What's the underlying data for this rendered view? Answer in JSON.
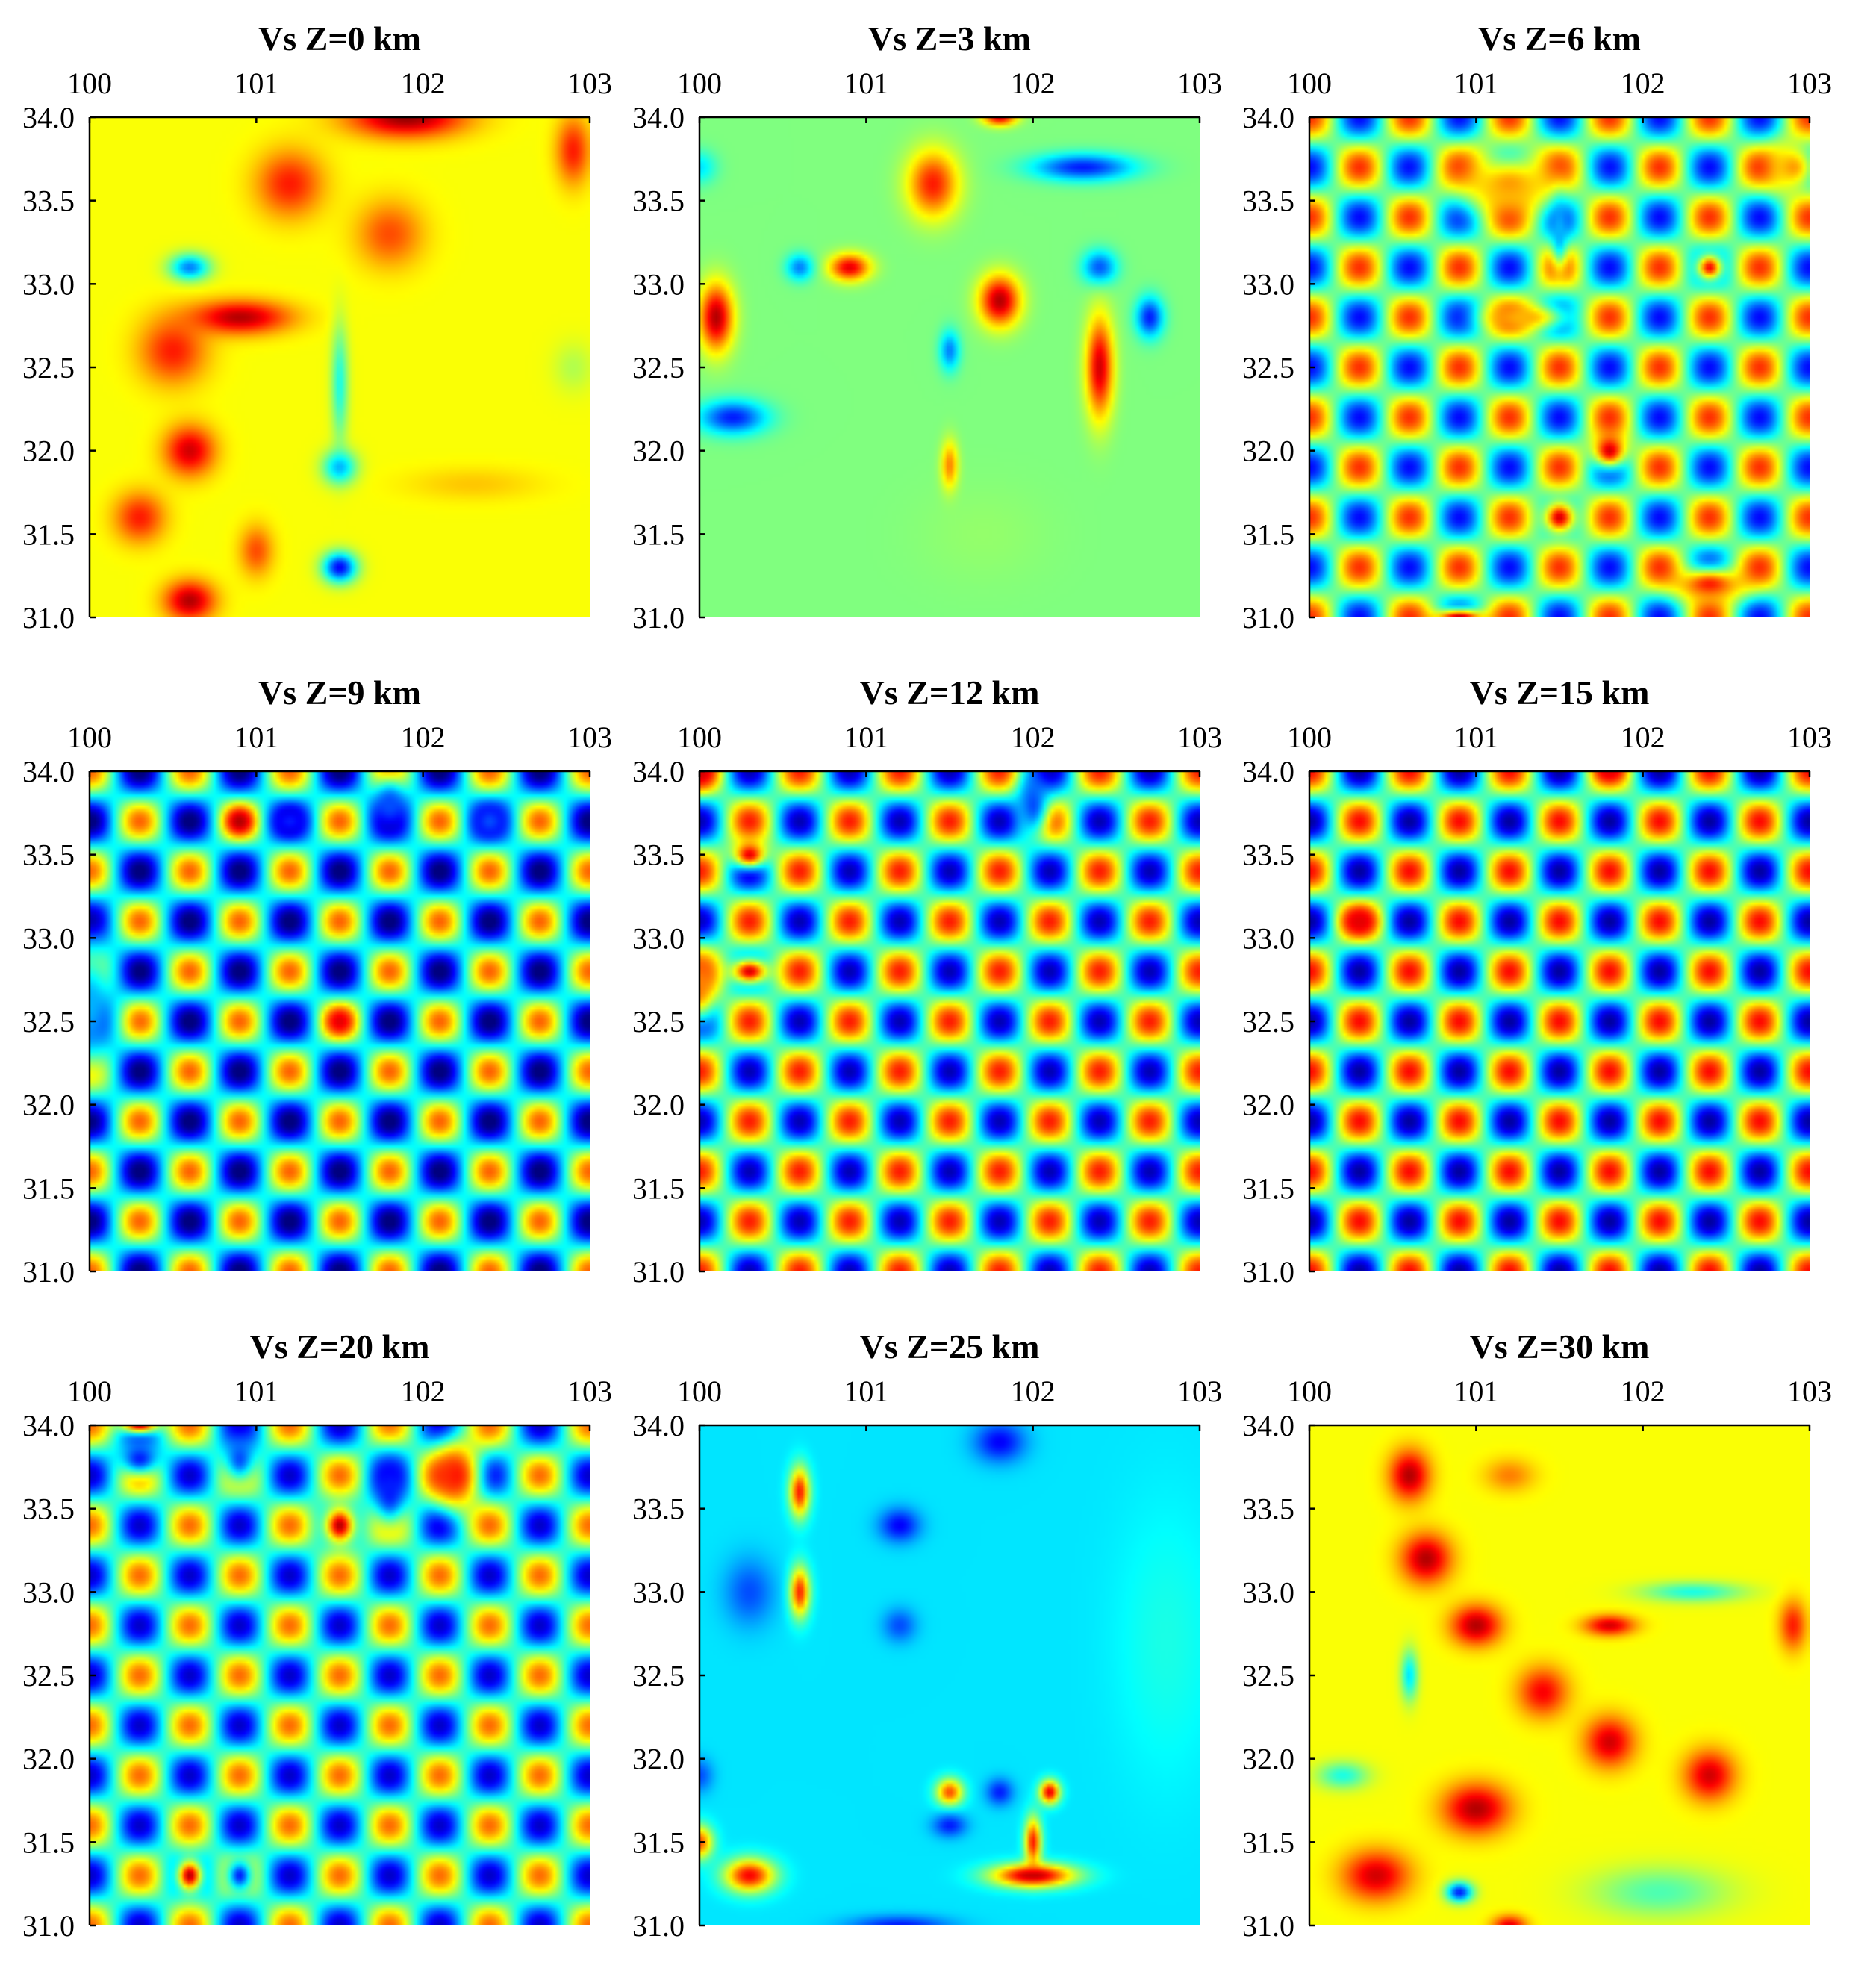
{
  "figure": {
    "colormap": "jet",
    "colors": [
      "#00007f",
      "#0000ff",
      "#0080ff",
      "#00ffff",
      "#80ff80",
      "#ffff00",
      "#ff8000",
      "#ff0000",
      "#7f0000"
    ]
  },
  "chart_data": [
    {
      "type": "heatmap",
      "title": "Vs Z=0 km",
      "depth_km": 0,
      "xlim": [
        100,
        103
      ],
      "ylim": [
        31.0,
        34.0
      ],
      "xticks": [
        "100",
        "101",
        "102",
        "103"
      ],
      "yticks": [
        "34.0",
        "33.5",
        "33.0",
        "32.5",
        "32.0",
        "31.5",
        "31.0"
      ],
      "x_axis_position": "top",
      "grid": false,
      "pattern": "smooth",
      "background_level": 0.62,
      "anomalies": [
        [
          101.9,
          34.0,
          0.98,
          0.35,
          0.12
        ],
        [
          101.2,
          33.6,
          0.85,
          0.2,
          0.2
        ],
        [
          102.9,
          33.8,
          0.85,
          0.1,
          0.2
        ],
        [
          101.8,
          33.3,
          0.8,
          0.2,
          0.2
        ],
        [
          100.6,
          33.1,
          0.25,
          0.12,
          0.08
        ],
        [
          100.9,
          32.8,
          0.95,
          0.3,
          0.1
        ],
        [
          100.5,
          32.6,
          0.85,
          0.2,
          0.2
        ],
        [
          101.5,
          32.4,
          0.4,
          0.05,
          0.35
        ],
        [
          102.9,
          32.5,
          0.55,
          0.12,
          0.15
        ],
        [
          100.6,
          32.0,
          0.92,
          0.15,
          0.15
        ],
        [
          100.3,
          31.6,
          0.85,
          0.15,
          0.15
        ],
        [
          101.5,
          31.9,
          0.3,
          0.1,
          0.1
        ],
        [
          101.5,
          31.3,
          0.12,
          0.1,
          0.09
        ],
        [
          100.6,
          31.1,
          0.95,
          0.15,
          0.12
        ],
        [
          101.0,
          31.4,
          0.8,
          0.1,
          0.15
        ],
        [
          102.3,
          31.8,
          0.68,
          0.4,
          0.1
        ]
      ]
    },
    {
      "type": "heatmap",
      "title": "Vs Z=3 km",
      "depth_km": 3,
      "xlim": [
        100,
        103
      ],
      "ylim": [
        31.0,
        34.0
      ],
      "xticks": [
        "100",
        "101",
        "102",
        "103"
      ],
      "yticks": [
        "34.0",
        "33.5",
        "33.0",
        "32.5",
        "32.0",
        "31.5",
        "31.0"
      ],
      "x_axis_position": "top",
      "grid": false,
      "pattern": "smooth",
      "background_level": 0.5,
      "anomalies": [
        [
          102.3,
          33.7,
          0.15,
          0.3,
          0.08
        ],
        [
          101.4,
          33.6,
          0.85,
          0.15,
          0.2
        ],
        [
          101.8,
          34.0,
          0.9,
          0.1,
          0.05
        ],
        [
          100.0,
          33.7,
          0.35,
          0.1,
          0.1
        ],
        [
          100.9,
          33.1,
          0.9,
          0.12,
          0.08
        ],
        [
          100.6,
          33.1,
          0.25,
          0.08,
          0.08
        ],
        [
          101.8,
          32.9,
          0.95,
          0.12,
          0.15
        ],
        [
          102.4,
          33.1,
          0.2,
          0.1,
          0.1
        ],
        [
          102.4,
          32.5,
          0.92,
          0.08,
          0.3
        ],
        [
          102.7,
          32.8,
          0.15,
          0.08,
          0.12
        ],
        [
          100.1,
          32.8,
          0.95,
          0.1,
          0.2
        ],
        [
          100.2,
          32.2,
          0.15,
          0.2,
          0.1
        ],
        [
          101.5,
          32.6,
          0.25,
          0.06,
          0.12
        ],
        [
          101.5,
          31.9,
          0.78,
          0.05,
          0.15
        ],
        [
          101.7,
          31.5,
          0.52,
          0.4,
          0.3
        ]
      ]
    },
    {
      "type": "heatmap",
      "title": "Vs Z=6 km",
      "depth_km": 6,
      "xlim": [
        100,
        103
      ],
      "ylim": [
        31.0,
        34.0
      ],
      "xticks": [
        "100",
        "101",
        "102",
        "103"
      ],
      "yticks": [
        "34.0",
        "33.5",
        "33.0",
        "32.5",
        "32.0",
        "31.5",
        "31.0"
      ],
      "x_axis_position": "top",
      "grid": false,
      "pattern": "checkerboard",
      "period_x": 0.3,
      "period_y": 0.3,
      "amplitude": 0.35,
      "background_level": 0.48,
      "anomalies": [
        [
          101.2,
          33.6,
          0.72,
          0.3,
          0.2
        ],
        [
          102.9,
          33.7,
          0.72,
          0.15,
          0.15
        ],
        [
          101.5,
          33.3,
          0.3,
          0.05,
          0.2
        ],
        [
          101.3,
          32.8,
          0.7,
          0.25,
          0.08
        ],
        [
          102.4,
          33.1,
          0.88,
          0.08,
          0.08
        ],
        [
          101.5,
          31.6,
          0.92,
          0.1,
          0.1
        ],
        [
          101.8,
          32.0,
          0.92,
          0.1,
          0.1
        ],
        [
          102.4,
          31.2,
          0.85,
          0.2,
          0.1
        ],
        [
          100.9,
          31.0,
          0.95,
          0.15,
          0.05
        ]
      ]
    },
    {
      "type": "heatmap",
      "title": "Vs Z=9 km",
      "depth_km": 9,
      "xlim": [
        100,
        103
      ],
      "ylim": [
        31.0,
        34.0
      ],
      "xticks": [
        "100",
        "101",
        "102",
        "103"
      ],
      "yticks": [
        "34.0",
        "33.5",
        "33.0",
        "32.5",
        "32.0",
        "31.5",
        "31.0"
      ],
      "x_axis_position": "top",
      "grid": false,
      "pattern": "checkerboard",
      "period_x": 0.3,
      "period_y": 0.3,
      "amplitude": 0.4,
      "background_level": 0.38,
      "anomalies": [
        [
          100.9,
          33.7,
          0.95,
          0.08,
          0.08
        ],
        [
          101.2,
          33.7,
          0.15,
          0.1,
          0.08
        ],
        [
          101.8,
          33.8,
          0.2,
          0.1,
          0.15
        ],
        [
          102.4,
          33.7,
          0.2,
          0.1,
          0.1
        ],
        [
          100.0,
          32.6,
          0.3,
          0.15,
          0.4
        ],
        [
          101.5,
          32.5,
          0.9,
          0.08,
          0.08
        ]
      ]
    },
    {
      "type": "heatmap",
      "title": "Vs Z=12 km",
      "depth_km": 12,
      "xlim": [
        100,
        103
      ],
      "ylim": [
        31.0,
        34.0
      ],
      "xticks": [
        "100",
        "101",
        "102",
        "103"
      ],
      "yticks": [
        "34.0",
        "33.5",
        "33.0",
        "32.5",
        "32.0",
        "31.5",
        "31.0"
      ],
      "x_axis_position": "top",
      "grid": false,
      "pattern": "checkerboard",
      "period_x": 0.3,
      "period_y": 0.3,
      "amplitude": 0.4,
      "background_level": 0.45,
      "anomalies": [
        [
          100.0,
          34.0,
          0.92,
          0.1,
          0.1
        ],
        [
          100.3,
          33.5,
          0.9,
          0.1,
          0.08
        ],
        [
          100.3,
          32.8,
          0.92,
          0.12,
          0.08
        ],
        [
          100.0,
          32.7,
          0.75,
          0.1,
          0.2
        ],
        [
          102.0,
          33.8,
          0.2,
          0.1,
          0.2
        ]
      ]
    },
    {
      "type": "heatmap",
      "title": "Vs Z=15 km",
      "depth_km": 15,
      "xlim": [
        100,
        103
      ],
      "ylim": [
        31.0,
        34.0
      ],
      "xticks": [
        "100",
        "101",
        "102",
        "103"
      ],
      "yticks": [
        "34.0",
        "33.5",
        "33.0",
        "32.5",
        "32.0",
        "31.5",
        "31.0"
      ],
      "x_axis_position": "top",
      "grid": false,
      "pattern": "checkerboard",
      "period_x": 0.3,
      "period_y": 0.3,
      "amplitude": 0.42,
      "background_level": 0.45,
      "anomalies": [
        [
          100.3,
          33.1,
          0.9,
          0.1,
          0.08
        ],
        [
          101.8,
          34.0,
          0.9,
          0.08,
          0.05
        ]
      ]
    },
    {
      "type": "heatmap",
      "title": "Vs Z=20 km",
      "depth_km": 20,
      "xlim": [
        100,
        103
      ],
      "ylim": [
        31.0,
        34.0
      ],
      "xticks": [
        "100",
        "101",
        "102",
        "103"
      ],
      "yticks": [
        "34.0",
        "33.5",
        "33.0",
        "32.5",
        "32.0",
        "31.5",
        "31.0"
      ],
      "x_axis_position": "top",
      "grid": false,
      "pattern": "checkerboard",
      "period_x": 0.3,
      "period_y": 0.3,
      "amplitude": 0.35,
      "background_level": 0.42,
      "anomalies": [
        [
          100.3,
          33.8,
          0.15,
          0.12,
          0.1
        ],
        [
          100.9,
          33.8,
          0.2,
          0.1,
          0.15
        ],
        [
          101.5,
          33.4,
          0.95,
          0.1,
          0.12
        ],
        [
          101.8,
          33.6,
          0.15,
          0.1,
          0.2
        ],
        [
          102.2,
          33.7,
          0.85,
          0.15,
          0.2
        ],
        [
          100.6,
          31.3,
          0.95,
          0.08,
          0.1
        ],
        [
          100.9,
          31.3,
          0.15,
          0.08,
          0.1
        ],
        [
          100.3,
          34.0,
          0.9,
          0.12,
          0.05
        ]
      ]
    },
    {
      "type": "heatmap",
      "title": "Vs Z=25 km",
      "depth_km": 25,
      "xlim": [
        100,
        103
      ],
      "ylim": [
        31.0,
        34.0
      ],
      "xticks": [
        "100",
        "101",
        "102",
        "103"
      ],
      "yticks": [
        "34.0",
        "33.5",
        "33.0",
        "32.5",
        "32.0",
        "31.5",
        "31.0"
      ],
      "x_axis_position": "top",
      "grid": false,
      "pattern": "smooth",
      "background_level": 0.35,
      "anomalies": [
        [
          101.8,
          33.9,
          0.12,
          0.15,
          0.12
        ],
        [
          101.2,
          33.4,
          0.12,
          0.12,
          0.1
        ],
        [
          100.6,
          33.6,
          0.85,
          0.06,
          0.15
        ],
        [
          100.6,
          33.0,
          0.85,
          0.06,
          0.15
        ],
        [
          100.3,
          33.0,
          0.2,
          0.15,
          0.2
        ],
        [
          101.2,
          32.8,
          0.2,
          0.1,
          0.1
        ],
        [
          102.8,
          32.7,
          0.4,
          0.3,
          0.8
        ],
        [
          102.0,
          31.3,
          0.95,
          0.25,
          0.07
        ],
        [
          102.0,
          31.5,
          0.85,
          0.05,
          0.15
        ],
        [
          101.5,
          31.8,
          0.8,
          0.08,
          0.08
        ],
        [
          101.8,
          31.8,
          0.15,
          0.08,
          0.08
        ],
        [
          102.1,
          31.8,
          0.9,
          0.06,
          0.07
        ],
        [
          101.5,
          31.6,
          0.15,
          0.1,
          0.07
        ],
        [
          100.3,
          31.3,
          0.88,
          0.15,
          0.1
        ],
        [
          101.2,
          31.0,
          0.15,
          0.3,
          0.06
        ],
        [
          100.0,
          31.9,
          0.2,
          0.08,
          0.1
        ],
        [
          100.0,
          31.5,
          0.8,
          0.08,
          0.1
        ]
      ]
    },
    {
      "type": "heatmap",
      "title": "Vs Z=30 km",
      "depth_km": 30,
      "xlim": [
        100,
        103
      ],
      "ylim": [
        31.0,
        34.0
      ],
      "xticks": [
        "100",
        "101",
        "102",
        "103"
      ],
      "yticks": [
        "34.0",
        "33.5",
        "33.0",
        "32.5",
        "32.0",
        "31.5",
        "31.0"
      ],
      "x_axis_position": "top",
      "grid": false,
      "pattern": "smooth",
      "background_level": 0.62,
      "anomalies": [
        [
          100.6,
          33.7,
          0.95,
          0.12,
          0.15
        ],
        [
          100.7,
          33.2,
          0.95,
          0.15,
          0.15
        ],
        [
          101.0,
          32.8,
          0.95,
          0.15,
          0.12
        ],
        [
          101.4,
          32.4,
          0.88,
          0.15,
          0.15
        ],
        [
          101.8,
          32.1,
          0.92,
          0.15,
          0.15
        ],
        [
          102.4,
          31.9,
          0.92,
          0.15,
          0.15
        ],
        [
          101.8,
          32.8,
          0.92,
          0.15,
          0.06
        ],
        [
          101.0,
          31.7,
          0.95,
          0.2,
          0.15
        ],
        [
          100.4,
          31.3,
          0.92,
          0.2,
          0.15
        ],
        [
          100.9,
          31.2,
          0.15,
          0.08,
          0.06
        ],
        [
          101.2,
          31.0,
          0.9,
          0.1,
          0.06
        ],
        [
          102.9,
          32.8,
          0.85,
          0.08,
          0.15
        ],
        [
          100.6,
          32.5,
          0.35,
          0.05,
          0.15
        ],
        [
          102.3,
          33.0,
          0.4,
          0.3,
          0.06
        ],
        [
          101.2,
          33.7,
          0.75,
          0.15,
          0.1
        ],
        [
          102.1,
          31.2,
          0.45,
          0.4,
          0.15
        ],
        [
          100.2,
          31.9,
          0.4,
          0.15,
          0.08
        ]
      ]
    }
  ]
}
